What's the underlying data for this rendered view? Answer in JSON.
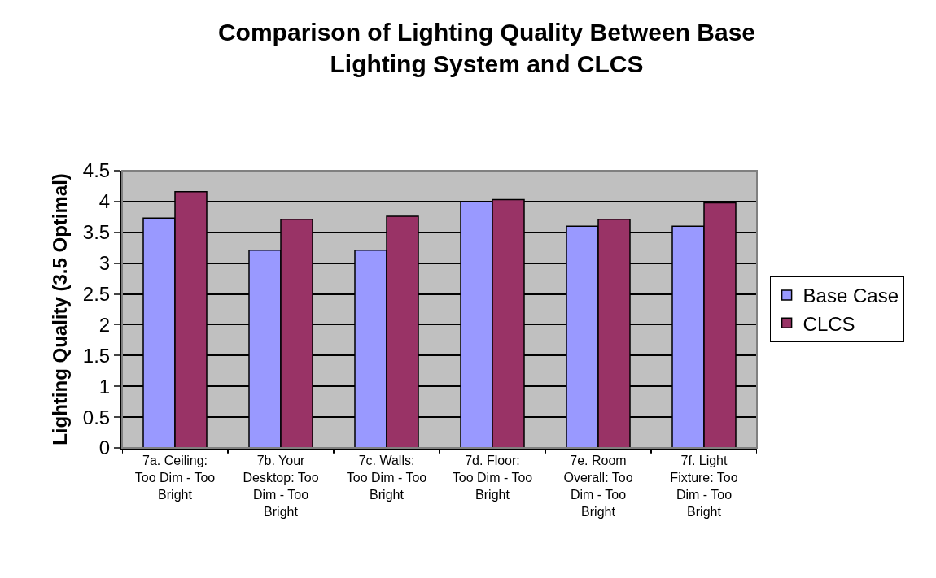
{
  "chart_data": {
    "type": "bar",
    "title": "Comparison of Lighting Quality Between Base Lighting System and CLCS",
    "ylabel": "Lighting Quality (3.5 Optimal)",
    "categories": [
      "7a. Ceiling: Too Dim - Too Bright",
      "7b. Your Desktop: Too Dim - Too Bright",
      "7c. Walls: Too Dim - Too Bright",
      "7d. Floor: Too Dim - Too Bright",
      "7e. Room Overall: Too Dim - Too Bright",
      "7f. Light Fixture: Too Dim - Too Bright"
    ],
    "series": [
      {
        "name": "Base Case",
        "color": "#9999ff",
        "values": [
          3.73,
          3.21,
          3.21,
          4.0,
          3.6,
          3.6
        ]
      },
      {
        "name": "CLCS",
        "color": "#993366",
        "values": [
          4.16,
          3.71,
          3.76,
          4.03,
          3.71,
          3.98
        ]
      }
    ],
    "ylim": [
      0,
      4.5
    ],
    "yticks": [
      0,
      0.5,
      1,
      1.5,
      2,
      2.5,
      3,
      3.5,
      4,
      4.5
    ],
    "grid": "y",
    "legend": "right"
  }
}
